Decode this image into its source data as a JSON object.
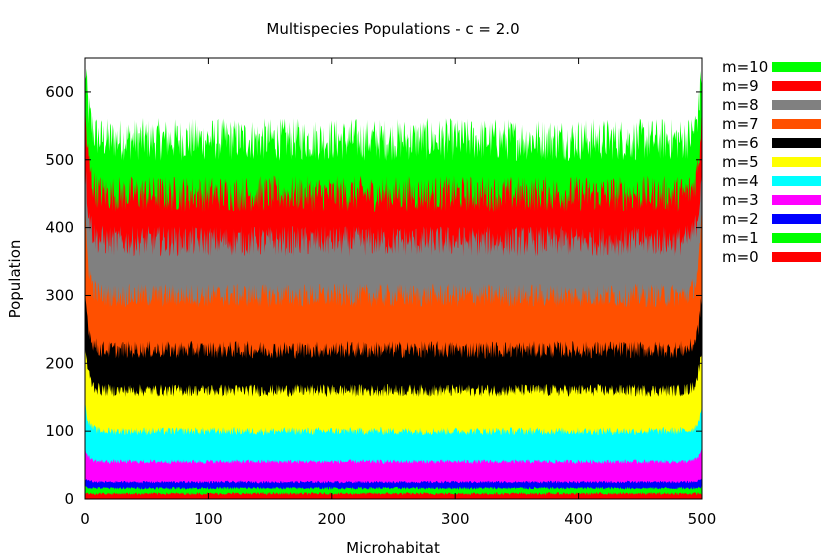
{
  "chart_data": {
    "type": "area",
    "stacked": true,
    "title": "Multispecies Populations - c = 2.0",
    "xlabel": "Microhabitat",
    "ylabel": "Population",
    "xlim": [
      0,
      500
    ],
    "ylim": [
      0,
      650
    ],
    "xticks": [
      0,
      100,
      200,
      300,
      400,
      500
    ],
    "yticks": [
      0,
      100,
      200,
      300,
      400,
      500,
      600
    ],
    "grid": false,
    "legend_position": "outside-right",
    "series": [
      {
        "name": "m=0",
        "color": "#ff0000",
        "typical_cumulative": 8,
        "edge_cumulative": 8
      },
      {
        "name": "m=1",
        "color": "#00ff00",
        "typical_cumulative": 16,
        "edge_cumulative": 18
      },
      {
        "name": "m=2",
        "color": "#0000ff",
        "typical_cumulative": 25,
        "edge_cumulative": 30
      },
      {
        "name": "m=3",
        "color": "#ff00ff",
        "typical_cumulative": 55,
        "edge_cumulative": 75
      },
      {
        "name": "m=4",
        "color": "#00ffff",
        "typical_cumulative": 100,
        "edge_cumulative": 140
      },
      {
        "name": "m=5",
        "color": "#ffff00",
        "typical_cumulative": 160,
        "edge_cumulative": 230
      },
      {
        "name": "m=6",
        "color": "#000000",
        "typical_cumulative": 220,
        "edge_cumulative": 310
      },
      {
        "name": "m=7",
        "color": "#ff5000",
        "typical_cumulative": 300,
        "edge_cumulative": 420
      },
      {
        "name": "m=8",
        "color": "#808080",
        "typical_cumulative": 380,
        "edge_cumulative": 500
      },
      {
        "name": "m=9",
        "color": "#ff0000",
        "typical_cumulative": 450,
        "edge_cumulative": 580
      },
      {
        "name": "m=10",
        "color": "#00ff00",
        "typical_cumulative": 530,
        "edge_cumulative": 650
      }
    ]
  }
}
